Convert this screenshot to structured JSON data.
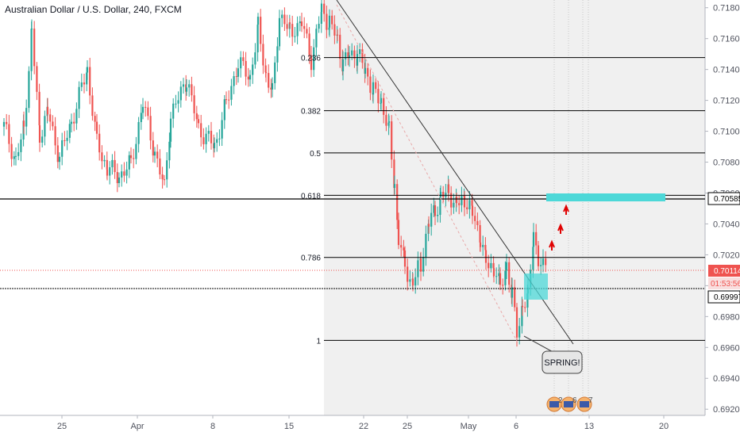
{
  "chart_data": {
    "type": "candlestick",
    "title": "Australian Dollar / U.S. Dollar, 240, FXCM",
    "x_tick_labels": [
      "25",
      "Apr",
      "8",
      "15",
      "22",
      "25",
      "May",
      "6",
      "13",
      "20"
    ],
    "y_tick_labels": [
      "0.71800",
      "0.71600",
      "0.71400",
      "0.71200",
      "0.71000",
      "0.70800",
      "0.70600",
      "0.70400",
      "0.70200",
      "0.70000",
      "0.69800",
      "0.69600",
      "0.69400",
      "0.69200"
    ],
    "ylim": [
      0.6916,
      0.7185
    ],
    "fib_levels": [
      {
        "label": "0.236",
        "value": 0.71477
      },
      {
        "label": "0.382",
        "value": 0.71133
      },
      {
        "label": "0.5",
        "value": 0.7086
      },
      {
        "label": "0.618",
        "value": 0.70585
      },
      {
        "label": "0.786",
        "value": 0.70183
      },
      {
        "label": "1",
        "value": 0.69646
      }
    ],
    "price_tags": {
      "resistance": "0.70585",
      "current": "0.70114",
      "countdown": "01:53:56",
      "support": "0.69997"
    },
    "annotations": {
      "callout": "SPRING!"
    },
    "event_markers": [
      "2",
      "6",
      "7"
    ],
    "colors": {
      "up": "#26a69a",
      "down": "#ef5350",
      "target_zone": "#4dd8d8",
      "arrow": "#e00000"
    }
  }
}
